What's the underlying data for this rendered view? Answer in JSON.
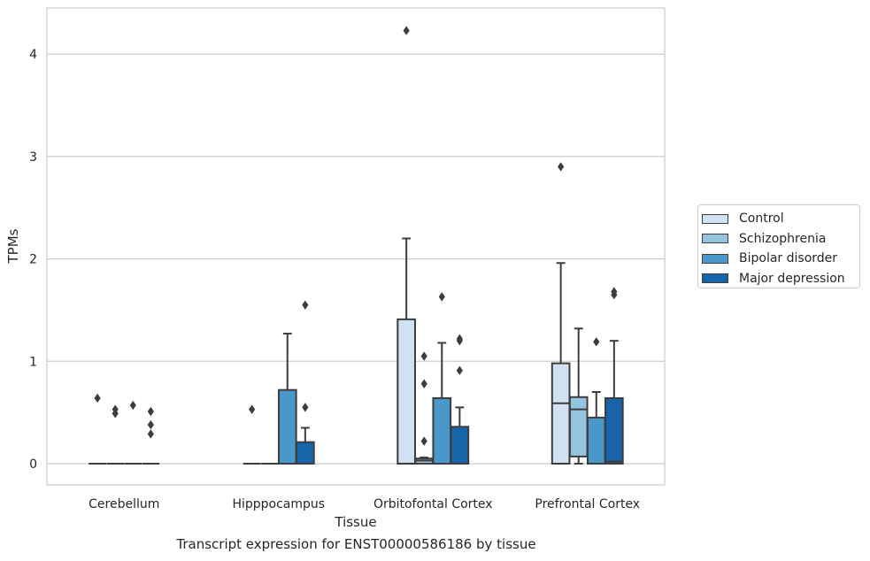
{
  "chart_data": {
    "type": "box",
    "caption": "Transcript expression for ENST00000586186 by tissue",
    "xlabel": "Tissue",
    "ylabel": "TPMs",
    "ylim": [
      -0.2,
      4.4
    ],
    "yticks": [
      0,
      1,
      2,
      3,
      4
    ],
    "grid": "horizontal",
    "legend_placement": "right, outside plot",
    "categories": [
      "Cerebellum",
      "Hipppocampus",
      "Orbitofontal Cortex",
      "Prefrontal Cortex"
    ],
    "series": [
      {
        "name": "Control",
        "color": "#d0e1f2",
        "boxes": [
          {
            "q1": 0,
            "median": 0,
            "q3": 0,
            "whisker_low": 0,
            "whisker_high": 0,
            "outliers": [
              0.64
            ]
          },
          {
            "q1": 0,
            "median": 0,
            "q3": 0,
            "whisker_low": 0,
            "whisker_high": 0,
            "outliers": [
              0.53
            ]
          },
          {
            "q1": 0,
            "median": 0,
            "q3": 1.41,
            "whisker_low": 0,
            "whisker_high": 2.2,
            "outliers": [
              4.23
            ]
          },
          {
            "q1": 0,
            "median": 0.59,
            "q3": 0.98,
            "whisker_low": 0,
            "whisker_high": 1.96,
            "outliers": [
              2.9
            ]
          }
        ]
      },
      {
        "name": "Schizophrenia",
        "color": "#94c4df",
        "boxes": [
          {
            "q1": 0,
            "median": 0,
            "q3": 0,
            "whisker_low": 0,
            "whisker_high": 0,
            "outliers": [
              0.49,
              0.53
            ]
          },
          {
            "q1": 0,
            "median": 0,
            "q3": 0,
            "whisker_low": 0,
            "whisker_high": 0,
            "outliers": []
          },
          {
            "q1": 0,
            "median": 0.03,
            "q3": 0.05,
            "whisker_low": 0,
            "whisker_high": 0.06,
            "outliers": [
              0.22,
              0.78,
              1.05
            ]
          },
          {
            "q1": 0.07,
            "median": 0.53,
            "q3": 0.65,
            "whisker_low": 0,
            "whisker_high": 1.32,
            "outliers": []
          }
        ]
      },
      {
        "name": "Bipolar disorder",
        "color": "#4a98c9",
        "boxes": [
          {
            "q1": 0,
            "median": 0,
            "q3": 0,
            "whisker_low": 0,
            "whisker_high": 0,
            "outliers": [
              0.57
            ]
          },
          {
            "q1": 0,
            "median": 0,
            "q3": 0.72,
            "whisker_low": 0,
            "whisker_high": 1.27,
            "outliers": []
          },
          {
            "q1": 0,
            "median": 0,
            "q3": 0.64,
            "whisker_low": 0,
            "whisker_high": 1.18,
            "outliers": [
              1.63
            ]
          },
          {
            "q1": 0,
            "median": 0,
            "q3": 0.45,
            "whisker_low": 0,
            "whisker_high": 0.7,
            "outliers": [
              1.19
            ]
          }
        ]
      },
      {
        "name": "Major depression",
        "color": "#1764ab",
        "boxes": [
          {
            "q1": 0,
            "median": 0,
            "q3": 0,
            "whisker_low": 0,
            "whisker_high": 0,
            "outliers": [
              0.29,
              0.38,
              0.51
            ]
          },
          {
            "q1": 0,
            "median": 0,
            "q3": 0.21,
            "whisker_low": 0,
            "whisker_high": 0.35,
            "outliers": [
              0.55,
              1.55
            ]
          },
          {
            "q1": 0,
            "median": 0,
            "q3": 0.36,
            "whisker_low": 0,
            "whisker_high": 0.55,
            "outliers": [
              0.91,
              1.2,
              1.22
            ]
          },
          {
            "q1": 0,
            "median": 0.02,
            "q3": 0.64,
            "whisker_low": 0,
            "whisker_high": 1.2,
            "outliers": [
              1.65,
              1.68
            ]
          }
        ]
      }
    ]
  }
}
